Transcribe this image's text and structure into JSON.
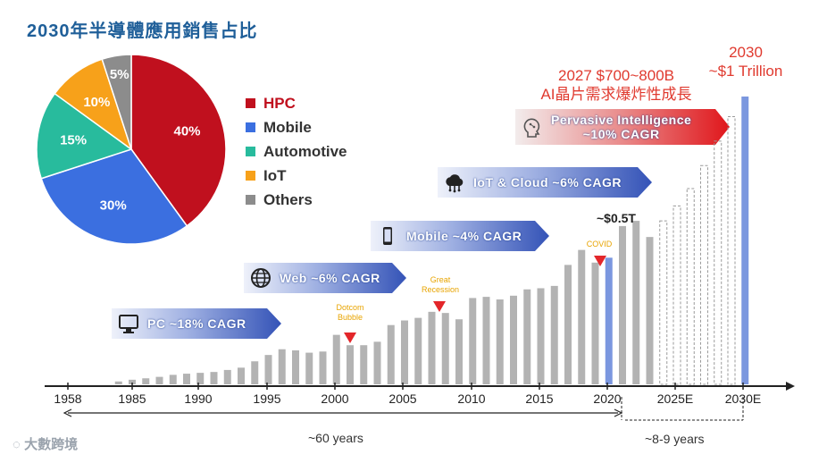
{
  "title": "2030年半導體應用銷售占比",
  "pie": {
    "slices": [
      {
        "name": "HPC",
        "value": 40,
        "label": "40%",
        "color": "#c0101e"
      },
      {
        "name": "Mobile",
        "value": 30,
        "label": "30%",
        "color": "#3b6fe0"
      },
      {
        "name": "Automotive",
        "value": 15,
        "label": "15%",
        "color": "#28bb9d"
      },
      {
        "name": "IoT",
        "value": 10,
        "label": "10%",
        "color": "#f7a11a"
      },
      {
        "name": "Others",
        "value": 5,
        "label": "5%",
        "color": "#8c8c8c"
      }
    ]
  },
  "annotations": {
    "forecast_2027": "2027 $700~800B",
    "ai_growth": "AI晶片需求爆炸性成長",
    "target_2030_year": "2030",
    "target_2030_value": "~$1 Trillion",
    "half_trillion": "~$0.5T"
  },
  "eras": [
    {
      "label": "PC ~18% CAGR",
      "icon": "monitor-icon"
    },
    {
      "label": "Web ~6% CAGR",
      "icon": "globe-icon"
    },
    {
      "label": "Mobile ~4% CAGR",
      "icon": "smartphone-icon"
    },
    {
      "label": "IoT & Cloud ~6% CAGR",
      "icon": "cloud-icon"
    },
    {
      "label": "Pervasive Intelligence",
      "label2": "~10% CAGR",
      "icon": "ai-head-icon"
    }
  ],
  "events": [
    {
      "line1": "Dotcom",
      "line2": "Bubble"
    },
    {
      "line1": "Great",
      "line2": "Recession"
    },
    {
      "line1": "COVID",
      "line2": ""
    }
  ],
  "axis": {
    "ticks": [
      "1958",
      "1985",
      "1990",
      "1995",
      "2000",
      "2005",
      "2010",
      "2015",
      "2020",
      "2025E",
      "2030E"
    ]
  },
  "spans": {
    "history": "~60 years",
    "forecast": "~8-9 years"
  },
  "watermark": "大數跨境",
  "colors": {
    "bar_gray": "#b3b3b3",
    "bar_blue": "#7b97df",
    "arrow_red": "#e3262a",
    "era_blue": "#3453b7"
  },
  "chart_data": [
    {
      "type": "pie",
      "title": "2030年半導體應用銷售占比",
      "categories": [
        "HPC",
        "Mobile",
        "Automotive",
        "IoT",
        "Others"
      ],
      "values": [
        40,
        30,
        15,
        10,
        5
      ]
    },
    {
      "type": "bar",
      "xlabel": "",
      "ylabel": "",
      "x_ticks": [
        "1958",
        "1985",
        "1990",
        "1995",
        "2000",
        "2005",
        "2010",
        "2015",
        "2020",
        "2025E",
        "2030E"
      ],
      "ylim": [
        0,
        1000
      ],
      "series": [
        {
          "x": [
            1984,
            1985,
            1986,
            1987,
            1988,
            1989,
            1990,
            1991,
            1992,
            1993,
            1994,
            1995,
            1996,
            1997,
            1998,
            1999,
            2000,
            2001,
            2002,
            2003,
            2004,
            2005,
            2006,
            2007,
            2008,
            2009,
            2010,
            2011,
            2012,
            2013,
            2014,
            2015,
            2016,
            2017,
            2018,
            2019,
            2020,
            2021,
            2022,
            2023
          ],
          "values": [
            10,
            16,
            21,
            26,
            33,
            37,
            40,
            43,
            50,
            58,
            80,
            102,
            122,
            118,
            110,
            114,
            172,
            136,
            136,
            148,
            206,
            222,
            231,
            252,
            248,
            226,
            300,
            304,
            295,
            308,
            330,
            334,
            342,
            415,
            467,
            423,
            440,
            550,
            568,
            512
          ]
        },
        {
          "x": [
            2024,
            2025,
            2026,
            2027,
            2028,
            2029
          ],
          "values": [
            568,
            620,
            680,
            760,
            845,
            930
          ],
          "forecast": true
        },
        {
          "x": [
            2030
          ],
          "values": [
            1000
          ]
        }
      ]
    }
  ]
}
